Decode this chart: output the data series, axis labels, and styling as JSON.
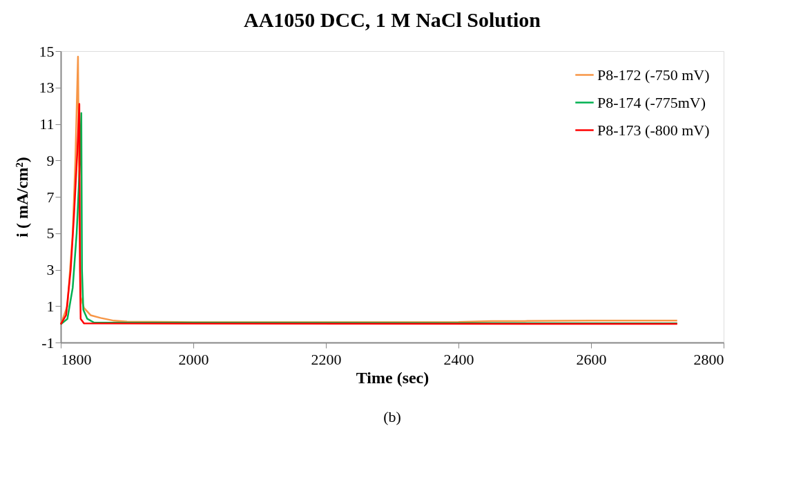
{
  "chart_data": {
    "type": "line",
    "title": "AA1050 DCC, 1 M NaCl Solution",
    "xlabel": "Time (sec)",
    "ylabel": "i ( mA/cm²)",
    "xlim": [
      1800,
      2800
    ],
    "xticks": [
      1800,
      2000,
      2200,
      2400,
      2600,
      2800
    ],
    "ylim": [
      -1,
      15
    ],
    "yticks": [
      -1,
      1,
      3,
      5,
      7,
      9,
      11,
      13,
      15
    ],
    "grid": false,
    "legend": "top right",
    "marker": "none",
    "line_style": "solid",
    "annotations": [
      "(b)"
    ],
    "series": [
      {
        "name": "P8-172 (-750 mV)",
        "color": "#f79646",
        "x": [
          1800,
          1810,
          1818,
          1822,
          1826,
          1828,
          1830,
          1835,
          1845,
          1860,
          1880,
          1900,
          2000,
          2200,
          2400,
          2450,
          2500,
          2600,
          2730
        ],
        "values": [
          0,
          1,
          5,
          9,
          14.7,
          6,
          1.5,
          0.9,
          0.5,
          0.35,
          0.2,
          0.15,
          0.12,
          0.12,
          0.13,
          0.18,
          0.18,
          0.2,
          0.2
        ]
      },
      {
        "name": "P8-174 (-775mV)",
        "color": "#00b050",
        "x": [
          1800,
          1810,
          1818,
          1824,
          1829,
          1831,
          1832,
          1834,
          1840,
          1850,
          2730
        ],
        "values": [
          0,
          0.3,
          2,
          5,
          9,
          11.6,
          3,
          0.8,
          0.3,
          0.1,
          0.05
        ]
      },
      {
        "name": "P8-173 (-800 mV)",
        "color": "#ff0000",
        "x": [
          1800,
          1808,
          1815,
          1820,
          1825,
          1828,
          1829,
          1830,
          1835,
          2730
        ],
        "values": [
          0,
          0.5,
          3,
          6,
          9.5,
          12.1,
          3,
          0.3,
          0.05,
          0.02
        ]
      }
    ]
  }
}
